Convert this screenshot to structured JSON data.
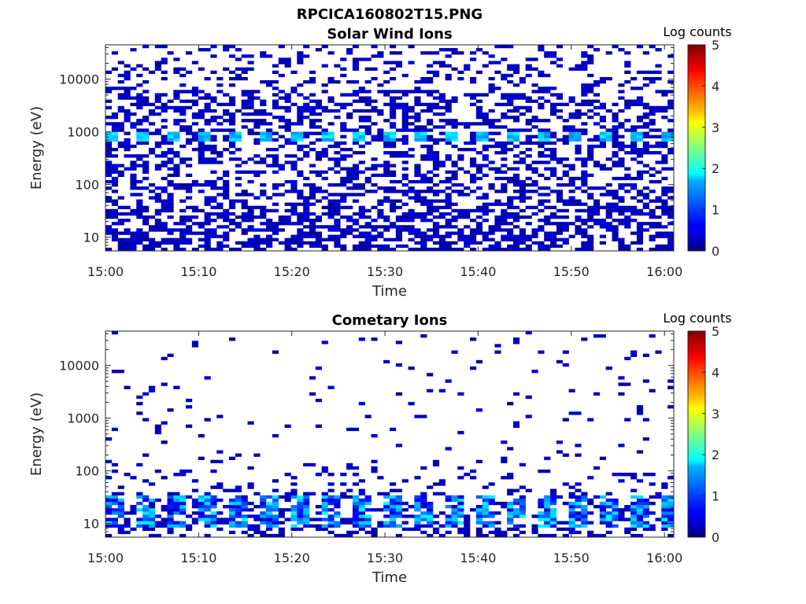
{
  "figure_title": "RPCICA160802T15.PNG",
  "chart_data": [
    {
      "type": "heatmap",
      "title": "Solar Wind Ions",
      "xlabel": "Time",
      "ylabel": "Energy (eV)",
      "x_range": [
        "15:00",
        "16:01"
      ],
      "x_ticks": [
        "15:00",
        "15:10",
        "15:20",
        "15:30",
        "15:40",
        "15:50",
        "16:00"
      ],
      "y_scale": "log",
      "y_range": [
        5.5,
        45000
      ],
      "y_ticks": [
        "10",
        "100",
        "1000",
        "10000"
      ],
      "colorbar": {
        "label": "Log counts",
        "range": [
          0,
          5
        ],
        "ticks": [
          "0",
          "1",
          "2",
          "3",
          "4",
          "5"
        ],
        "colormap": "jet"
      },
      "background": "#ffffff",
      "features": [
        {
          "energy_eV": 800,
          "log_counts": 1.8,
          "description_source": "peak band"
        }
      ]
    },
    {
      "type": "heatmap",
      "title": "Cometary Ions",
      "xlabel": "Time",
      "ylabel": "Energy (eV)",
      "x_range": [
        "15:00",
        "16:01"
      ],
      "x_ticks": [
        "15:00",
        "15:10",
        "15:20",
        "15:30",
        "15:40",
        "15:50",
        "16:00"
      ],
      "y_scale": "log",
      "y_range": [
        5.5,
        45000
      ],
      "y_ticks": [
        "10",
        "100",
        "1000",
        "10000"
      ],
      "colorbar": {
        "label": "Log counts",
        "range": [
          0,
          5
        ],
        "ticks": [
          "0",
          "1",
          "2",
          "3",
          "4",
          "5"
        ],
        "colormap": "jet"
      },
      "background": "#ffffff",
      "features": [
        {
          "energy_eV": 20,
          "log_counts": 1.8
        }
      ]
    }
  ]
}
